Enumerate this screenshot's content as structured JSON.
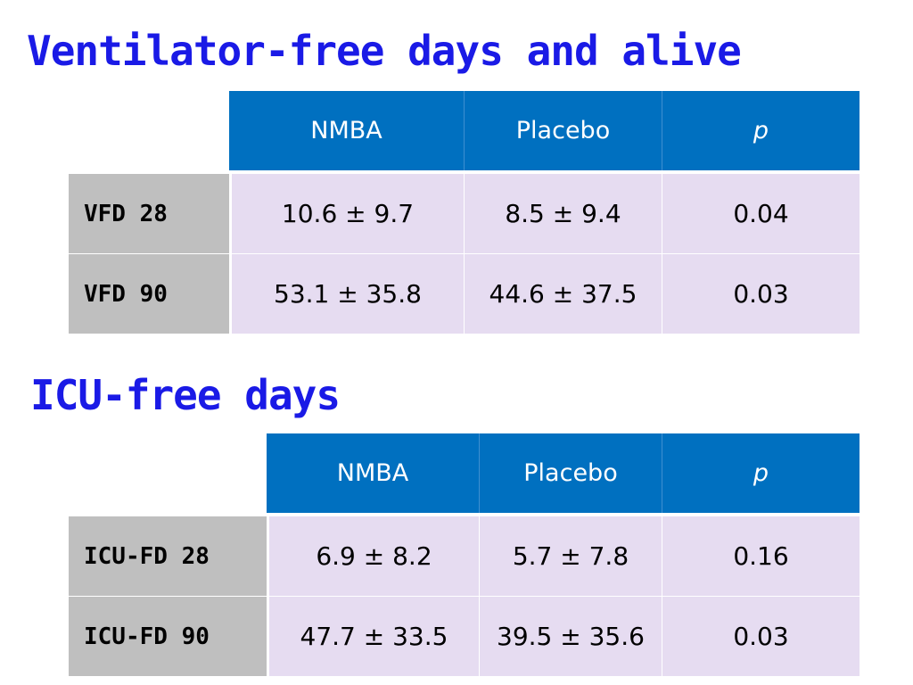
{
  "slide": {
    "section1": {
      "title": "Ventilator-free days and alive",
      "header": {
        "col1": "NMBA",
        "col2": "Placebo",
        "col3": "p"
      },
      "rows": [
        {
          "label": "VFD 28",
          "nmba": "10.6 ± 9.7",
          "placebo": "8.5 ± 9.4",
          "p": "0.04"
        },
        {
          "label": "VFD 90",
          "nmba": "53.1 ± 35.8",
          "placebo": "44.6 ± 37.5",
          "p": "0.03"
        }
      ]
    },
    "section2": {
      "title": "ICU-free days",
      "header": {
        "col1": "NMBA",
        "col2": "Placebo",
        "col3": "p"
      },
      "rows": [
        {
          "label": "ICU-FD 28",
          "nmba": "6.9 ± 8.2",
          "placebo": "5.7 ± 7.8",
          "p": "0.16"
        },
        {
          "label": "ICU-FD 90",
          "nmba": "47.7 ± 33.5",
          "placebo": "39.5 ± 35.6",
          "p": "0.03"
        }
      ]
    }
  },
  "colors": {
    "title": "#1a1ae6",
    "header_bg": "#0070c0",
    "row_label_bg": "#bfbfbf",
    "cell_bg": "#e6dcf1"
  }
}
